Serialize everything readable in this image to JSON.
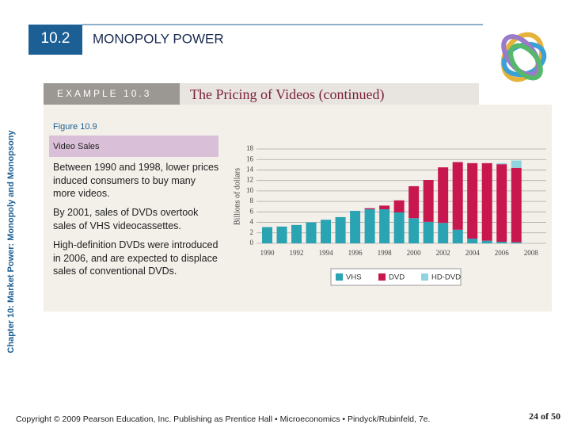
{
  "side_label": "Chapter 10: Market Power: Monopoly and Monopsony",
  "header": {
    "number": "10.2",
    "title": "MONOPOLY POWER"
  },
  "example": {
    "label": "EXAMPLE 10.3",
    "title": "The Pricing of Videos (continued)"
  },
  "figure": {
    "label": "Figure 10.9",
    "caption": "Video Sales"
  },
  "paragraphs": [
    "Between 1990 and 1998, lower prices induced consumers to buy many more videos.",
    "By 2001, sales of DVDs overtook sales of VHS videocassettes.",
    "High-definition DVDs were introduced in 2006, and are expected to displace sales of conventional DVDs."
  ],
  "footer": {
    "copyright": "Copyright © 2009 Pearson Education, Inc. Publishing as Prentice Hall • Microeconomics • Pindyck/Rubinfeld, 7e.",
    "page": "24 of 50"
  },
  "chart_data": {
    "type": "stacked_bar",
    "y_label": "Billions of dollars",
    "x": [
      1990,
      1991,
      1992,
      1993,
      1994,
      1995,
      1996,
      1997,
      1998,
      1999,
      2000,
      2001,
      2002,
      2003,
      2004,
      2005,
      2006,
      2007
    ],
    "series": [
      {
        "name": "VHS",
        "color": "#2aa3b3",
        "values": [
          3.1,
          3.2,
          3.5,
          4.0,
          4.5,
          5.0,
          6.2,
          6.5,
          6.5,
          5.9,
          4.8,
          4.1,
          3.9,
          2.6,
          0.9,
          0.5,
          0.3,
          0.2
        ]
      },
      {
        "name": "DVD",
        "color": "#c8174f",
        "values": [
          null,
          null,
          null,
          null,
          null,
          null,
          null,
          0.2,
          0.7,
          2.3,
          6.1,
          8.0,
          10.6,
          12.9,
          14.4,
          14.8,
          14.8,
          14.2
        ]
      },
      {
        "name": "HD-DVD",
        "color": "#8fd3de",
        "values": [
          null,
          null,
          null,
          null,
          null,
          null,
          null,
          null,
          null,
          null,
          null,
          null,
          null,
          null,
          null,
          null,
          0.2,
          1.4
        ]
      }
    ],
    "xlim": [
      1989,
      2008.5
    ],
    "xticks": [
      1990,
      1992,
      1994,
      1996,
      1998,
      2000,
      2002,
      2004,
      2006,
      2008
    ],
    "ylim": [
      0,
      18
    ],
    "yticks": [
      0,
      2,
      4,
      6,
      8,
      10,
      12,
      14,
      16,
      18
    ],
    "grid": true
  }
}
